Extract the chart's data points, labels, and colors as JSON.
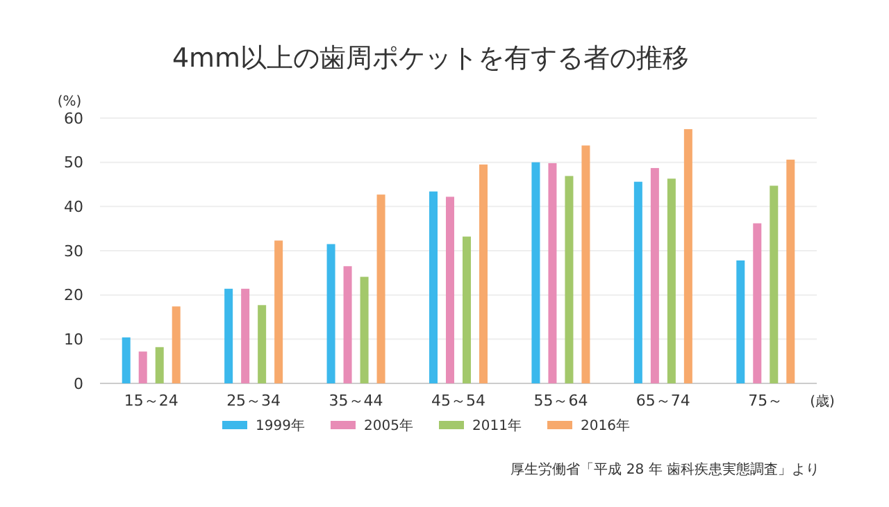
{
  "chart_data": {
    "type": "bar",
    "title": "4mm以上の歯周ポケットを有する者の推移",
    "ylabel": "(%)",
    "xlabel": "(歳)",
    "categories": [
      "15～24",
      "25～34",
      "35～44",
      "45～54",
      "55～64",
      "65～74",
      "75～"
    ],
    "series": [
      {
        "name": "1999年",
        "color": "#3bb8ec",
        "values": [
          10.4,
          21.4,
          31.5,
          43.4,
          50.0,
          45.6,
          27.8
        ]
      },
      {
        "name": "2005年",
        "color": "#e88cb6",
        "values": [
          7.2,
          21.4,
          26.5,
          42.2,
          49.8,
          48.7,
          36.2
        ]
      },
      {
        "name": "2011年",
        "color": "#a3c86b",
        "values": [
          8.2,
          17.7,
          24.1,
          33.2,
          46.9,
          46.3,
          44.7
        ]
      },
      {
        "name": "2016年",
        "color": "#f7a96c",
        "values": [
          17.4,
          32.3,
          42.7,
          49.5,
          53.8,
          57.5,
          50.6
        ]
      }
    ],
    "ylim": [
      0,
      60
    ],
    "yticks": [
      0,
      10,
      20,
      30,
      40,
      50,
      60
    ],
    "grid": "y",
    "legend": "bottom",
    "annotations": [
      "厚生労働省「平成 28 年 歯科疾患実態調査」より"
    ]
  }
}
